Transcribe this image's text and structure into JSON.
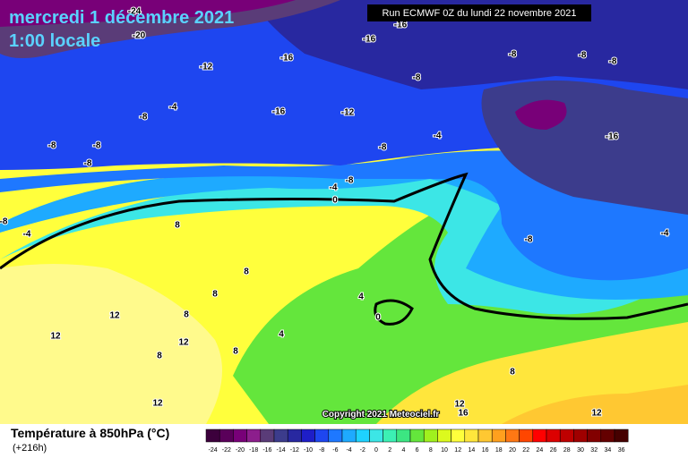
{
  "header": {
    "date": "mercredi 1 décembre 2021",
    "time": "1:00 locale",
    "run": "Run ECMWF 0Z du lundi 22 novembre 2021"
  },
  "copyright": "Copyright 2021 Meteociel.fr",
  "map_labels": [
    "-24",
    "-20",
    "-16",
    "-16",
    "-16",
    "-12",
    "-8",
    "-8",
    "-8",
    "-8",
    "-4",
    "-8",
    "-16",
    "-12",
    "-16",
    "-8",
    "-8",
    "-8",
    "-8",
    "-4",
    "-8",
    "-4",
    "0",
    "-8",
    "-4",
    "8",
    "-8",
    "-4",
    "8",
    "8",
    "4",
    "0",
    "12",
    "8",
    "12",
    "4",
    "12",
    "8",
    "8",
    "8",
    "12",
    "12",
    "16",
    "12"
  ],
  "legend": {
    "title": "Température à 850hPa (°C)",
    "lead": "(+216h)",
    "labels": [
      "-24",
      "-22",
      "-20",
      "-18",
      "-16",
      "-14",
      "-12",
      "-10",
      "-8",
      "-6",
      "-4",
      "-2",
      "0",
      "2",
      "4",
      "6",
      "8",
      "10",
      "12",
      "14",
      "16",
      "18",
      "20",
      "22",
      "24",
      "26",
      "28",
      "30",
      "32",
      "34",
      "36"
    ],
    "colors": [
      "#3c003c",
      "#5a005a",
      "#780078",
      "#8c1e8c",
      "#5a3c78",
      "#3c3c8c",
      "#2828a0",
      "#1e1ec8",
      "#1e46f0",
      "#1e78ff",
      "#1eaaff",
      "#1ed2ff",
      "#3ce6e6",
      "#3cf0b4",
      "#3ce682",
      "#64e63c",
      "#a0f01e",
      "#dcfa1e",
      "#ffff3c",
      "#ffe63c",
      "#ffc832",
      "#ffa01e",
      "#ff7814",
      "#ff4600",
      "#ff0000",
      "#dc0000",
      "#be0000",
      "#a00000",
      "#820000",
      "#640000",
      "#460000"
    ]
  }
}
